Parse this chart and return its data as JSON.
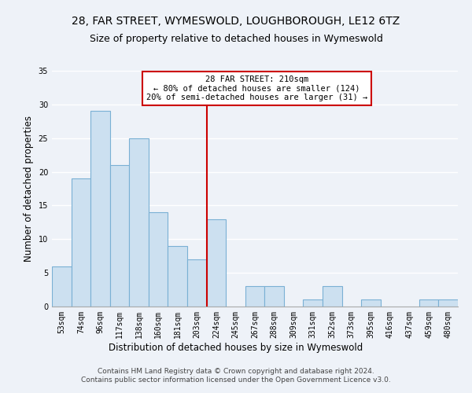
{
  "title": "28, FAR STREET, WYMESWOLD, LOUGHBOROUGH, LE12 6TZ",
  "subtitle": "Size of property relative to detached houses in Wymeswold",
  "xlabel": "Distribution of detached houses by size in Wymeswold",
  "ylabel": "Number of detached properties",
  "bin_labels": [
    "53sqm",
    "74sqm",
    "96sqm",
    "117sqm",
    "138sqm",
    "160sqm",
    "181sqm",
    "203sqm",
    "224sqm",
    "245sqm",
    "267sqm",
    "288sqm",
    "309sqm",
    "331sqm",
    "352sqm",
    "373sqm",
    "395sqm",
    "416sqm",
    "437sqm",
    "459sqm",
    "480sqm"
  ],
  "bar_values": [
    6,
    19,
    29,
    21,
    25,
    14,
    9,
    7,
    13,
    0,
    3,
    3,
    0,
    1,
    3,
    0,
    1,
    0,
    0,
    1,
    1
  ],
  "bar_color": "#cce0f0",
  "bar_edge_color": "#7ab0d4",
  "property_line_x": 7.5,
  "property_label": "28 FAR STREET: 210sqm",
  "annotation_line1": "← 80% of detached houses are smaller (124)",
  "annotation_line2": "20% of semi-detached houses are larger (31) →",
  "annotation_box_color": "#ffffff",
  "annotation_box_edge_color": "#cc0000",
  "vline_color": "#cc0000",
  "ylim": [
    0,
    35
  ],
  "yticks": [
    0,
    5,
    10,
    15,
    20,
    25,
    30,
    35
  ],
  "footer1": "Contains HM Land Registry data © Crown copyright and database right 2024.",
  "footer2": "Contains public sector information licensed under the Open Government Licence v3.0.",
  "bg_color": "#eef2f8",
  "grid_color": "#ffffff",
  "title_fontsize": 10,
  "subtitle_fontsize": 9,
  "axis_label_fontsize": 8.5,
  "tick_fontsize": 7,
  "footer_fontsize": 6.5,
  "ann_fontsize": 7.5
}
